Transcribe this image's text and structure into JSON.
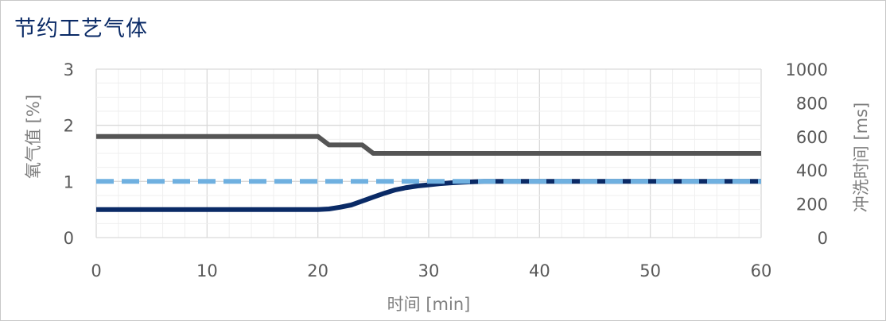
{
  "chart_data": {
    "type": "line",
    "title": "节约工艺气体",
    "xlabel": "时间 [min]",
    "ylabel": "氧气值 [%]",
    "y2label": "冲洗时间 [ms]",
    "xlim": [
      0,
      60
    ],
    "ylim": [
      0,
      3
    ],
    "y2lim": [
      0,
      1000
    ],
    "x_ticks": [
      "0",
      "10",
      "20",
      "30",
      "40",
      "50",
      "60"
    ],
    "y_ticks": [
      "0",
      "1",
      "2",
      "3"
    ],
    "y2_ticks": [
      "0",
      "200",
      "400",
      "600",
      "800",
      "1000"
    ],
    "grid": true,
    "series": [
      {
        "axis": "y2",
        "color": "#555555",
        "style": "solid",
        "x": [
          0,
          20,
          21,
          24,
          25,
          60
        ],
        "y": [
          600,
          600,
          550,
          550,
          500,
          500
        ]
      },
      {
        "axis": "y",
        "color": "#0a2a66",
        "style": "solid",
        "x": [
          0,
          20,
          21,
          22,
          23,
          24,
          25,
          26,
          27,
          28,
          29,
          30,
          31,
          32,
          33,
          34,
          35,
          60
        ],
        "y": [
          0.5,
          0.5,
          0.51,
          0.54,
          0.58,
          0.65,
          0.72,
          0.79,
          0.85,
          0.89,
          0.92,
          0.94,
          0.96,
          0.975,
          0.985,
          0.993,
          1.0,
          1.0
        ]
      },
      {
        "axis": "y",
        "color": "#6fb0e0",
        "style": "dashed",
        "x": [
          0,
          60
        ],
        "y": [
          1,
          1
        ]
      }
    ]
  }
}
